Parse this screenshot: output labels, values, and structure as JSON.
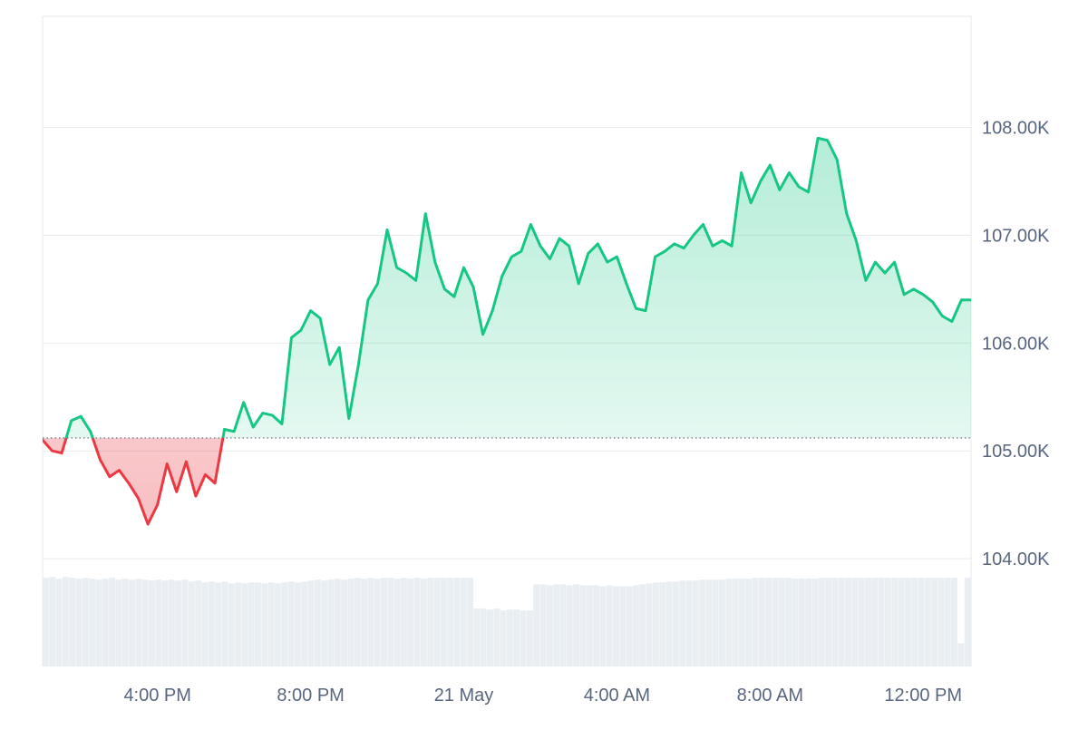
{
  "chart_data": {
    "type": "area",
    "title": "",
    "xlabel": "",
    "ylabel": "",
    "x_tick_labels": [
      "4:00 PM",
      "8:00 PM",
      "21 May",
      "4:00 AM",
      "8:00 AM",
      "12:00 PM"
    ],
    "x_tick_hours": [
      16,
      20,
      24,
      28,
      32,
      36
    ],
    "x_range_hours": [
      13,
      37.25
    ],
    "y_tick_labels": [
      "104.00K",
      "105.00K",
      "106.00K",
      "107.00K",
      "108.00K"
    ],
    "y_ticks": [
      104000,
      105000,
      106000,
      107000,
      108000
    ],
    "ylim": [
      103000,
      109030
    ],
    "baseline": 105120,
    "grid": "horizontal",
    "colors": {
      "up": "#16c784",
      "down": "#ea3943",
      "up_fill": "#16c784",
      "down_fill": "#ea3943",
      "grid": "#e8eaed",
      "baseline": "#58667e",
      "volume": "#e9eef2",
      "tick_text": "#58667e"
    },
    "series": [
      {
        "x_hours": [
          13.0,
          13.25,
          13.5,
          13.75,
          14.0,
          14.25,
          14.5,
          14.75,
          15.0,
          15.25,
          15.5,
          15.75,
          16.0,
          16.25,
          16.5,
          16.75,
          17.0,
          17.25,
          17.5,
          17.75,
          18.0,
          18.25,
          18.5,
          18.75,
          19.0,
          19.25,
          19.5,
          19.75,
          20.0,
          20.25,
          20.5,
          20.75,
          21.0,
          21.25,
          21.5,
          21.75,
          22.0,
          22.25,
          22.5,
          22.75,
          23.0,
          23.25,
          23.5,
          23.75,
          24.0,
          24.25,
          24.5,
          24.75,
          25.0,
          25.25,
          25.5,
          25.75,
          26.0,
          26.25,
          26.5,
          26.75,
          27.0,
          27.25,
          27.5,
          27.75,
          28.0,
          28.25,
          28.5,
          28.75,
          29.0,
          29.25,
          29.5,
          29.75,
          30.0,
          30.25,
          30.5,
          30.75,
          31.0,
          31.25,
          31.5,
          31.75,
          32.0,
          32.25,
          32.5,
          32.75,
          33.0,
          33.25,
          33.5,
          33.75,
          34.0,
          34.25,
          34.5,
          34.75,
          35.0,
          35.25,
          35.5,
          35.75,
          36.0,
          36.25,
          36.5,
          36.75,
          37.0,
          37.25
        ],
        "values": [
          105100,
          105000,
          104980,
          105280,
          105320,
          105180,
          104920,
          104760,
          104820,
          104700,
          104560,
          104320,
          104500,
          104880,
          104620,
          104900,
          104580,
          104780,
          104700,
          105200,
          105180,
          105450,
          105220,
          105350,
          105330,
          105250,
          106050,
          106120,
          106300,
          106230,
          105800,
          105960,
          105300,
          105800,
          106400,
          106550,
          107050,
          106700,
          106650,
          106580,
          107200,
          106750,
          106500,
          106430,
          106700,
          106520,
          106080,
          106300,
          106620,
          106800,
          106850,
          107100,
          106900,
          106780,
          106970,
          106900,
          106550,
          106830,
          106920,
          106750,
          106800,
          106550,
          106320,
          106300,
          106800,
          106850,
          106920,
          106880,
          107000,
          107100,
          106900,
          106950,
          106900,
          107580,
          107300,
          107500,
          107650,
          107420,
          107580,
          107450,
          107400,
          107900,
          107880,
          107700,
          107200,
          106950,
          106580,
          106750,
          106650,
          106750,
          106450,
          106500,
          106450,
          106380,
          106250,
          106200,
          106400,
          106400
        ]
      }
    ],
    "volume_relative": [
      0.95,
      0.96,
      0.94,
      0.96,
      0.95,
      0.94,
      0.95,
      0.94,
      0.93,
      0.94,
      0.95,
      0.93,
      0.94,
      0.93,
      0.94,
      0.93,
      0.92,
      0.93,
      0.92,
      0.93,
      0.92,
      0.93,
      0.91,
      0.92,
      0.9,
      0.91,
      0.9,
      0.91,
      0.89,
      0.9,
      0.89,
      0.9,
      0.9,
      0.89,
      0.9,
      0.89,
      0.9,
      0.91,
      0.9,
      0.91,
      0.92,
      0.93,
      0.92,
      0.93,
      0.94,
      0.93,
      0.94,
      0.95,
      0.94,
      0.95,
      0.94,
      0.95,
      0.95,
      0.94,
      0.95,
      0.94,
      0.95,
      0.94,
      0.95,
      0.95,
      0.95,
      0.95,
      0.95,
      0.95,
      0.95,
      0.62,
      0.62,
      0.61,
      0.62,
      0.6,
      0.61,
      0.61,
      0.6,
      0.6,
      0.88,
      0.88,
      0.87,
      0.88,
      0.88,
      0.87,
      0.88,
      0.87,
      0.87,
      0.87,
      0.86,
      0.87,
      0.86,
      0.86,
      0.86,
      0.87,
      0.88,
      0.89,
      0.9,
      0.9,
      0.91,
      0.91,
      0.92,
      0.92,
      0.92,
      0.93,
      0.93,
      0.93,
      0.93,
      0.94,
      0.94,
      0.94,
      0.94,
      0.95,
      0.95,
      0.95,
      0.95,
      0.95,
      0.95,
      0.94,
      0.94,
      0.94,
      0.94,
      0.95,
      0.95,
      0.95,
      0.95,
      0.95,
      0.95,
      0.95,
      0.95,
      0.95,
      0.95,
      0.95,
      0.95,
      0.95,
      0.95,
      0.95,
      0.95,
      0.95,
      0.95,
      0.95,
      0.95,
      0.95,
      0.25,
      0.95
    ]
  }
}
